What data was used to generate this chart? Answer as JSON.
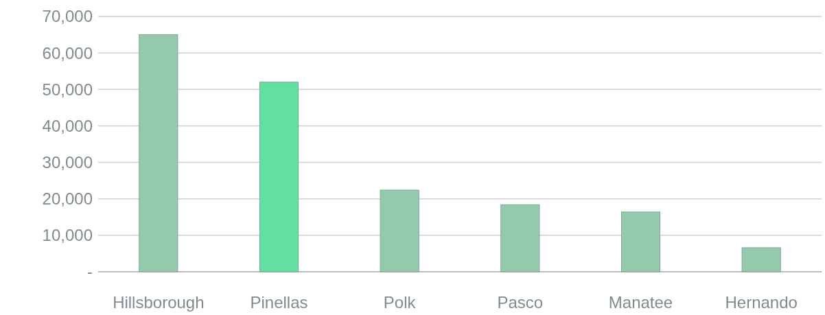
{
  "chart_data": {
    "type": "bar",
    "categories": [
      "Hillsborough",
      "Pinellas",
      "Polk",
      "Pasco",
      "Manatee",
      "Hernando"
    ],
    "values": [
      65000,
      52000,
      22400,
      18400,
      16400,
      6600
    ],
    "colors": [
      "#95c9ae",
      "#62e0a2",
      "#95c9ae",
      "#95c9ae",
      "#95c9ae",
      "#95c9ae"
    ],
    "ylim": [
      0,
      70000
    ],
    "yticks": [
      {
        "value": 0,
        "label": "-"
      },
      {
        "value": 10000,
        "label": "10,000"
      },
      {
        "value": 20000,
        "label": "20,000"
      },
      {
        "value": 30000,
        "label": "30,000"
      },
      {
        "value": 40000,
        "label": "40,000"
      },
      {
        "value": 50000,
        "label": "50,000"
      },
      {
        "value": 60000,
        "label": "60,000"
      },
      {
        "value": 70000,
        "label": "70,000"
      }
    ],
    "grid": "y"
  }
}
